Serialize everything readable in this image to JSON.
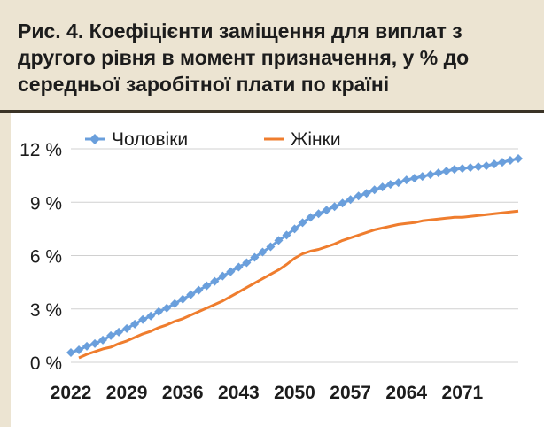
{
  "title": "Рис. 4. Коефіцієнти заміщення для виплат з другого рівня в момент призначення, у % до середньої заробітної плати по країні",
  "colors": {
    "header_bg": "#ece4d2",
    "header_rule": "#3a3326",
    "men": "#6a9fdc",
    "women": "#ef7d2e",
    "grid": "#d0d0d0"
  },
  "chart_data": {
    "type": "line",
    "title": "Рис. 4. Коефіцієнти заміщення для виплат з другого рівня в момент призначення, у % до середньої заробітної плати по країні",
    "xlabel": "",
    "ylabel": "",
    "x_range": [
      2022,
      2078
    ],
    "x_ticks": [
      "2022",
      "2029",
      "2036",
      "2043",
      "2050",
      "2057",
      "2064",
      "2071"
    ],
    "ylim": [
      0,
      12
    ],
    "y_ticks": [
      "0 %",
      "3 %",
      "6 %",
      "9 %",
      "12 %"
    ],
    "grid": true,
    "legend": "top",
    "x": [
      2022,
      2023,
      2024,
      2025,
      2026,
      2027,
      2028,
      2029,
      2030,
      2031,
      2032,
      2033,
      2034,
      2035,
      2036,
      2037,
      2038,
      2039,
      2040,
      2041,
      2042,
      2043,
      2044,
      2045,
      2046,
      2047,
      2048,
      2049,
      2050,
      2051,
      2052,
      2053,
      2054,
      2055,
      2056,
      2057,
      2058,
      2059,
      2060,
      2061,
      2062,
      2063,
      2064,
      2065,
      2066,
      2067,
      2068,
      2069,
      2070,
      2071,
      2072,
      2073,
      2074,
      2075,
      2076,
      2077,
      2078
    ],
    "series": [
      {
        "name": "Чоловіки",
        "marker": "diamond",
        "values": [
          0.55,
          0.7,
          0.9,
          1.05,
          1.25,
          1.5,
          1.7,
          1.9,
          2.15,
          2.4,
          2.6,
          2.85,
          3.05,
          3.3,
          3.55,
          3.8,
          4.05,
          4.3,
          4.55,
          4.85,
          5.1,
          5.35,
          5.6,
          5.9,
          6.2,
          6.5,
          6.85,
          7.15,
          7.5,
          7.85,
          8.15,
          8.35,
          8.55,
          8.75,
          8.95,
          9.15,
          9.35,
          9.5,
          9.7,
          9.85,
          10.0,
          10.1,
          10.25,
          10.35,
          10.45,
          10.55,
          10.65,
          10.75,
          10.85,
          10.9,
          10.95,
          11.0,
          11.05,
          11.15,
          11.25,
          11.35,
          11.45
        ]
      },
      {
        "name": "Жінки",
        "marker": "none",
        "values": [
          null,
          0.25,
          0.45,
          0.6,
          0.75,
          0.85,
          1.05,
          1.2,
          1.4,
          1.6,
          1.75,
          1.95,
          2.1,
          2.3,
          2.45,
          2.65,
          2.85,
          3.05,
          3.25,
          3.45,
          3.7,
          3.95,
          4.2,
          4.45,
          4.7,
          4.95,
          5.2,
          5.5,
          5.85,
          6.1,
          6.25,
          6.35,
          6.5,
          6.65,
          6.85,
          7.0,
          7.15,
          7.3,
          7.45,
          7.55,
          7.65,
          7.75,
          7.8,
          7.85,
          7.95,
          8.0,
          8.05,
          8.1,
          8.15,
          8.15,
          8.2,
          8.25,
          8.3,
          8.35,
          8.4,
          8.45,
          8.5
        ]
      }
    ]
  }
}
